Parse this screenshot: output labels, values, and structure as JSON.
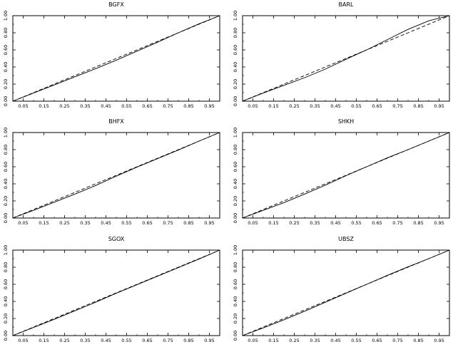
{
  "chart_data": [
    {
      "type": "line",
      "title": "BGFX",
      "xlim": [
        0,
        1
      ],
      "ylim": [
        0,
        1
      ],
      "grid": false,
      "x_ticks": [
        "0.05",
        "0.15",
        "0.25",
        "0.35",
        "0.45",
        "0.55",
        "0.65",
        "0.75",
        "0.85",
        "0.95"
      ],
      "y_ticks": [
        "0.00",
        "0.20",
        "0.40",
        "0.60",
        "0.80",
        "1.00"
      ],
      "x": [
        0,
        0.1,
        0.2,
        0.3,
        0.4,
        0.5,
        0.6,
        0.7,
        0.8,
        0.9,
        1.0
      ],
      "series": [
        {
          "style": "solid",
          "values": [
            0,
            0.095,
            0.19,
            0.285,
            0.38,
            0.48,
            0.585,
            0.69,
            0.8,
            0.905,
            1.0
          ]
        },
        {
          "style": "dashed",
          "values": [
            0,
            0.1,
            0.2,
            0.3,
            0.4,
            0.5,
            0.6,
            0.7,
            0.8,
            0.9,
            1.0
          ]
        }
      ]
    },
    {
      "type": "line",
      "title": "BARL",
      "xlim": [
        0,
        1
      ],
      "ylim": [
        0,
        1
      ],
      "grid": false,
      "x_ticks": [
        "0.05",
        "0.15",
        "0.25",
        "0.35",
        "0.45",
        "0.55",
        "0.65",
        "0.75",
        "0.85",
        "0.95"
      ],
      "y_ticks": [
        "0.00",
        "0.20",
        "0.40",
        "0.60",
        "0.80",
        "1.00"
      ],
      "x": [
        0,
        0.1,
        0.2,
        0.3,
        0.4,
        0.5,
        0.6,
        0.7,
        0.8,
        0.9,
        1.0
      ],
      "series": [
        {
          "style": "solid",
          "values": [
            0,
            0.095,
            0.185,
            0.275,
            0.375,
            0.49,
            0.6,
            0.72,
            0.84,
            0.94,
            1.0
          ]
        },
        {
          "style": "dashed",
          "values": [
            0,
            0.1,
            0.2,
            0.3,
            0.4,
            0.5,
            0.6,
            0.7,
            0.8,
            0.9,
            1.0
          ]
        }
      ]
    },
    {
      "type": "line",
      "title": "BHFX",
      "xlim": [
        0,
        1
      ],
      "ylim": [
        0,
        1
      ],
      "grid": false,
      "x_ticks": [
        "0.05",
        "0.15",
        "0.25",
        "0.35",
        "0.45",
        "0.55",
        "0.65",
        "0.75",
        "0.85",
        "0.95"
      ],
      "y_ticks": [
        "0.00",
        "0.20",
        "0.40",
        "0.60",
        "0.80",
        "1.00"
      ],
      "x": [
        0,
        0.1,
        0.2,
        0.3,
        0.4,
        0.5,
        0.6,
        0.7,
        0.8,
        0.9,
        1.0
      ],
      "series": [
        {
          "style": "solid",
          "values": [
            0,
            0.09,
            0.185,
            0.28,
            0.38,
            0.49,
            0.595,
            0.695,
            0.795,
            0.9,
            1.0
          ]
        },
        {
          "style": "dashed",
          "values": [
            0,
            0.1,
            0.2,
            0.3,
            0.4,
            0.5,
            0.6,
            0.7,
            0.8,
            0.9,
            1.0
          ]
        }
      ]
    },
    {
      "type": "line",
      "title": "SHKH",
      "xlim": [
        0,
        1
      ],
      "ylim": [
        0,
        1
      ],
      "grid": false,
      "x_ticks": [
        "0.05",
        "0.15",
        "0.25",
        "0.35",
        "0.45",
        "0.55",
        "0.65",
        "0.75",
        "0.85",
        "0.95"
      ],
      "y_ticks": [
        "0.00",
        "0.20",
        "0.40",
        "0.60",
        "0.80",
        "1.00"
      ],
      "x": [
        0,
        0.1,
        0.2,
        0.3,
        0.4,
        0.5,
        0.6,
        0.7,
        0.8,
        0.9,
        1.0
      ],
      "series": [
        {
          "style": "solid",
          "values": [
            0,
            0.09,
            0.18,
            0.28,
            0.385,
            0.495,
            0.6,
            0.705,
            0.8,
            0.9,
            1.0
          ]
        },
        {
          "style": "dashed",
          "values": [
            0,
            0.1,
            0.2,
            0.3,
            0.4,
            0.5,
            0.6,
            0.7,
            0.8,
            0.9,
            1.0
          ]
        }
      ]
    },
    {
      "type": "line",
      "title": "SGOX",
      "xlim": [
        0,
        1
      ],
      "ylim": [
        0,
        1
      ],
      "grid": false,
      "x_ticks": [
        "0.05",
        "0.15",
        "0.25",
        "0.35",
        "0.45",
        "0.55",
        "0.65",
        "0.75",
        "0.85",
        "0.95"
      ],
      "y_ticks": [
        "0.00",
        "0.20",
        "0.40",
        "0.60",
        "0.80",
        "1.00"
      ],
      "x": [
        0,
        0.1,
        0.2,
        0.3,
        0.4,
        0.5,
        0.6,
        0.7,
        0.8,
        0.9,
        1.0
      ],
      "series": [
        {
          "style": "solid",
          "values": [
            0,
            0.095,
            0.19,
            0.29,
            0.39,
            0.495,
            0.595,
            0.695,
            0.795,
            0.895,
            1.0
          ]
        },
        {
          "style": "dashed",
          "values": [
            0,
            0.1,
            0.2,
            0.3,
            0.4,
            0.5,
            0.6,
            0.7,
            0.8,
            0.9,
            1.0
          ]
        }
      ]
    },
    {
      "type": "line",
      "title": "UBSZ",
      "xlim": [
        0,
        1
      ],
      "ylim": [
        0,
        1
      ],
      "grid": false,
      "x_ticks": [
        "0.05",
        "0.15",
        "0.25",
        "0.35",
        "0.45",
        "0.55",
        "0.65",
        "0.75",
        "0.85",
        "0.95"
      ],
      "y_ticks": [
        "0.00",
        "0.20",
        "0.40",
        "0.60",
        "0.80",
        "1.00"
      ],
      "x": [
        0,
        0.1,
        0.2,
        0.3,
        0.4,
        0.5,
        0.6,
        0.7,
        0.8,
        0.9,
        1.0
      ],
      "series": [
        {
          "style": "solid",
          "values": [
            0,
            0.09,
            0.185,
            0.285,
            0.39,
            0.495,
            0.6,
            0.705,
            0.805,
            0.9,
            1.0
          ]
        },
        {
          "style": "dashed",
          "values": [
            0,
            0.1,
            0.2,
            0.3,
            0.4,
            0.5,
            0.6,
            0.7,
            0.8,
            0.9,
            1.0
          ]
        }
      ]
    }
  ]
}
